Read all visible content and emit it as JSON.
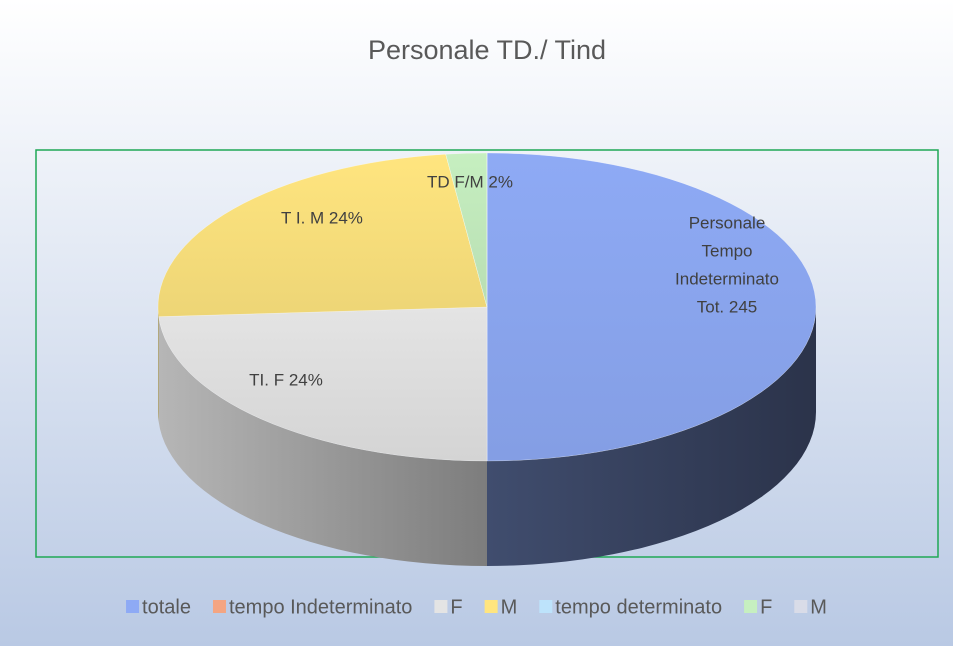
{
  "chart_data": {
    "type": "pie",
    "title": "Personale TD./ Tind",
    "series": [
      {
        "name": "totale",
        "color": "#8eaaf5",
        "values": [
          50
        ]
      },
      {
        "name": "tempo Indeterminato",
        "color": "#f4a582",
        "values": [
          0
        ]
      },
      {
        "name": "F",
        "color": "#e4e4e4",
        "values": [
          24
        ]
      },
      {
        "name": "M",
        "color": "#ffe57f",
        "values": [
          24
        ]
      },
      {
        "name": "tempo determinato",
        "color": "#bde3fb",
        "values": [
          0
        ]
      },
      {
        "name": "F",
        "color": "#c6efc0",
        "values": [
          2
        ]
      },
      {
        "name": "M",
        "color": "#d9dce8",
        "values": [
          0
        ]
      }
    ],
    "data_labels": [
      [
        "Personale",
        "Tempo",
        "Indeterminato",
        "Tot. 245"
      ],
      null,
      [
        "TI. F 24%"
      ],
      [
        "T I. M 24%"
      ],
      null,
      [
        "TD F/M 2%"
      ],
      null
    ],
    "legend": "bottom"
  }
}
